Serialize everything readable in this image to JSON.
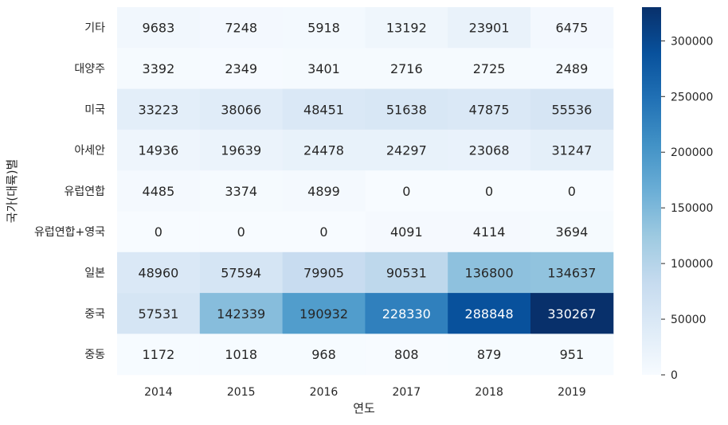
{
  "chart_data": {
    "type": "heatmap",
    "xlabel": "연도",
    "ylabel": "국가(대륙)별",
    "x_categories": [
      "2014",
      "2015",
      "2016",
      "2017",
      "2018",
      "2019"
    ],
    "y_categories": [
      "기타",
      "대양주",
      "미국",
      "아세안",
      "유럽연합",
      "유럽연합+영국",
      "일본",
      "중국",
      "중동"
    ],
    "values": [
      [
        9683,
        7248,
        5918,
        13192,
        23901,
        6475
      ],
      [
        3392,
        2349,
        3401,
        2716,
        2725,
        2489
      ],
      [
        33223,
        38066,
        48451,
        51638,
        47875,
        55536
      ],
      [
        14936,
        19639,
        24478,
        24297,
        23068,
        31247
      ],
      [
        4485,
        3374,
        4899,
        0,
        0,
        0
      ],
      [
        0,
        0,
        0,
        4091,
        4114,
        3694
      ],
      [
        48960,
        57594,
        79905,
        90531,
        136800,
        134637
      ],
      [
        57531,
        142339,
        190932,
        228330,
        288848,
        330267
      ],
      [
        1172,
        1018,
        968,
        808,
        879,
        951
      ]
    ],
    "colormap": "Blues",
    "vmin": 0,
    "vmax": 330267,
    "colorbar_ticks": [
      0,
      50000,
      100000,
      150000,
      200000,
      250000,
      300000
    ]
  }
}
